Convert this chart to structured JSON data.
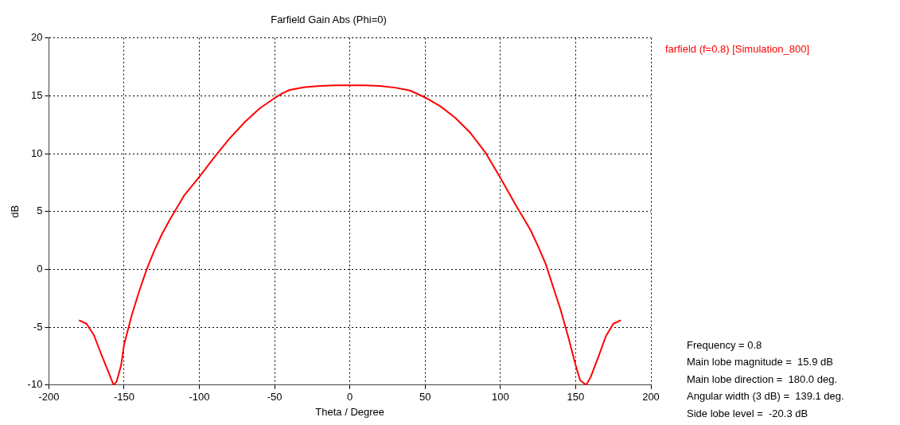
{
  "chart_data": {
    "type": "line",
    "title": "Farfield Gain Abs (Phi=0)",
    "xlabel": "Theta / Degree",
    "ylabel": "dB",
    "xlim": [
      -200,
      200
    ],
    "xticks": [
      -200,
      -150,
      -100,
      -50,
      0,
      50,
      100,
      150,
      200
    ],
    "ylim": [
      -10,
      20
    ],
    "yticks": [
      -10,
      -5,
      0,
      5,
      10,
      15,
      20
    ],
    "grid": true,
    "legend": "top right",
    "marker": "none",
    "line_style": "solid",
    "series": [
      {
        "name": "farfield (f=0.8) [Simulation_800]",
        "color": "#ff0000",
        "x": [
          -180,
          -175,
          -170,
          -165,
          -160,
          -157,
          -155,
          -152,
          -150,
          -145,
          -140,
          -135,
          -130,
          -125,
          -120,
          -115,
          -110,
          -100,
          -90,
          -80,
          -70,
          -60,
          -50,
          -45,
          -40,
          -30,
          -20,
          -10,
          0,
          10,
          20,
          30,
          40,
          50,
          60,
          70,
          80,
          90,
          100,
          110,
          120,
          125,
          130,
          135,
          140,
          145,
          150,
          153,
          157,
          160,
          165,
          170,
          175,
          180
        ],
        "values": [
          -4.4,
          -4.7,
          -5.7,
          -7.4,
          -9.0,
          -10,
          -9.7,
          -8.3,
          -6.5,
          -4.0,
          -1.9,
          0,
          1.6,
          3.0,
          4.2,
          5.3,
          6.4,
          8.0,
          9.7,
          11.3,
          12.7,
          13.9,
          14.8,
          15.2,
          15.5,
          15.75,
          15.85,
          15.9,
          15.9,
          15.9,
          15.85,
          15.7,
          15.45,
          14.85,
          14.1,
          13.1,
          11.8,
          10.1,
          7.9,
          5.6,
          3.4,
          2.0,
          0.5,
          -1.5,
          -3.5,
          -5.8,
          -8.3,
          -9.6,
          -10,
          -9.3,
          -7.6,
          -5.8,
          -4.7,
          -4.4
        ]
      }
    ],
    "annotations": [
      "Frequency = 0.8",
      "Main lobe magnitude =  15.9 dB",
      "Main lobe direction =  180.0 deg.",
      "Angular width (3 dB) =  139.1 deg.",
      "Side lobe level =  -20.3 dB"
    ]
  }
}
